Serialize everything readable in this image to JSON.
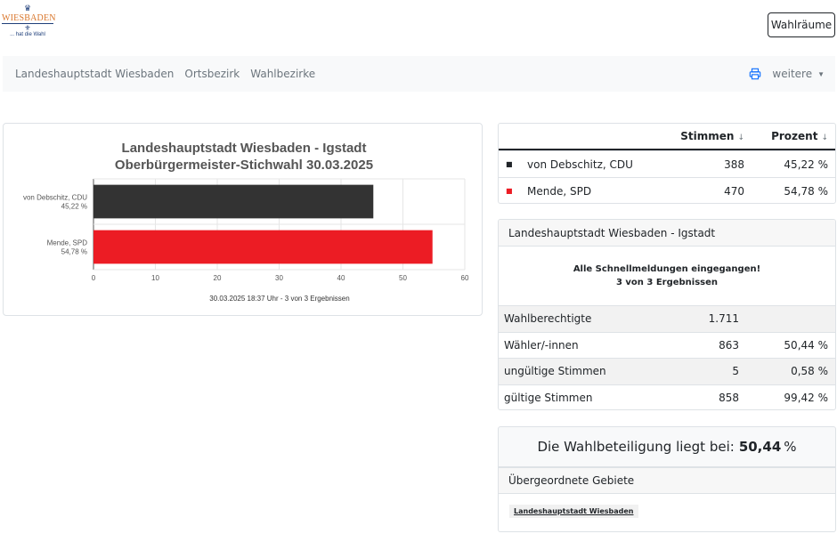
{
  "header": {
    "logo": {
      "wordmark": "WIESBADEN",
      "tagline": "... hat die Wahl"
    },
    "button_label": "Wahlräume"
  },
  "nav": {
    "links": [
      "Landeshauptstadt Wiesbaden",
      "Ortsbezirk",
      "Wahlbezirke"
    ],
    "print_icon": "printer-icon",
    "more_label": "weitere"
  },
  "chart_data": {
    "type": "bar",
    "orientation": "horizontal",
    "title": "Landeshauptstadt Wiesbaden - Igstadt",
    "subtitle": "Oberbürgermeister-Stichwahl 30.03.2025",
    "categories": [
      "von Debschitz, CDU",
      "Mende, SPD"
    ],
    "category_labels": [
      "45,22 %",
      "54,78 %"
    ],
    "values": [
      45.22,
      54.78
    ],
    "colors": [
      "#333333",
      "#ec1c24"
    ],
    "xlim": [
      0,
      60
    ],
    "xticks": [
      0,
      10,
      20,
      30,
      40,
      50,
      60
    ],
    "grid": true,
    "footer": "30.03.2025 18:37 Uhr - 3 von 3 Ergebnissen"
  },
  "results_table": {
    "headers": {
      "votes": "Stimmen",
      "percent": "Prozent"
    },
    "rows": [
      {
        "marker": "■",
        "color": "#212529",
        "name": "von Debschitz, CDU",
        "votes": "388",
        "percent": "45,22 %"
      },
      {
        "marker": "■",
        "color": "#ec1c24",
        "name": "Mende, SPD",
        "votes": "470",
        "percent": "54,78 %"
      }
    ]
  },
  "summary": {
    "title": "Landeshauptstadt Wiesbaden - Igstadt",
    "status_line1": "Alle Schnellmeldungen eingegangen!",
    "status_line2": "3 von 3 Ergebnissen",
    "rows": [
      {
        "label": "Wahlberechtigte",
        "value": "1.711",
        "percent": ""
      },
      {
        "label": "Wähler/-innen",
        "value": "863",
        "percent": "50,44 %"
      },
      {
        "label": "ungültige Stimmen",
        "value": "5",
        "percent": "0,58 %"
      },
      {
        "label": "gültige Stimmen",
        "value": "858",
        "percent": "99,42 %"
      }
    ]
  },
  "turnout": {
    "prefix": "Die Wahlbeteiligung liegt bei:",
    "value": "50,44",
    "suffix": "%"
  },
  "parent_areas": {
    "title": "Übergeordnete Gebiete",
    "link": "Landeshauptstadt Wiesbaden"
  }
}
